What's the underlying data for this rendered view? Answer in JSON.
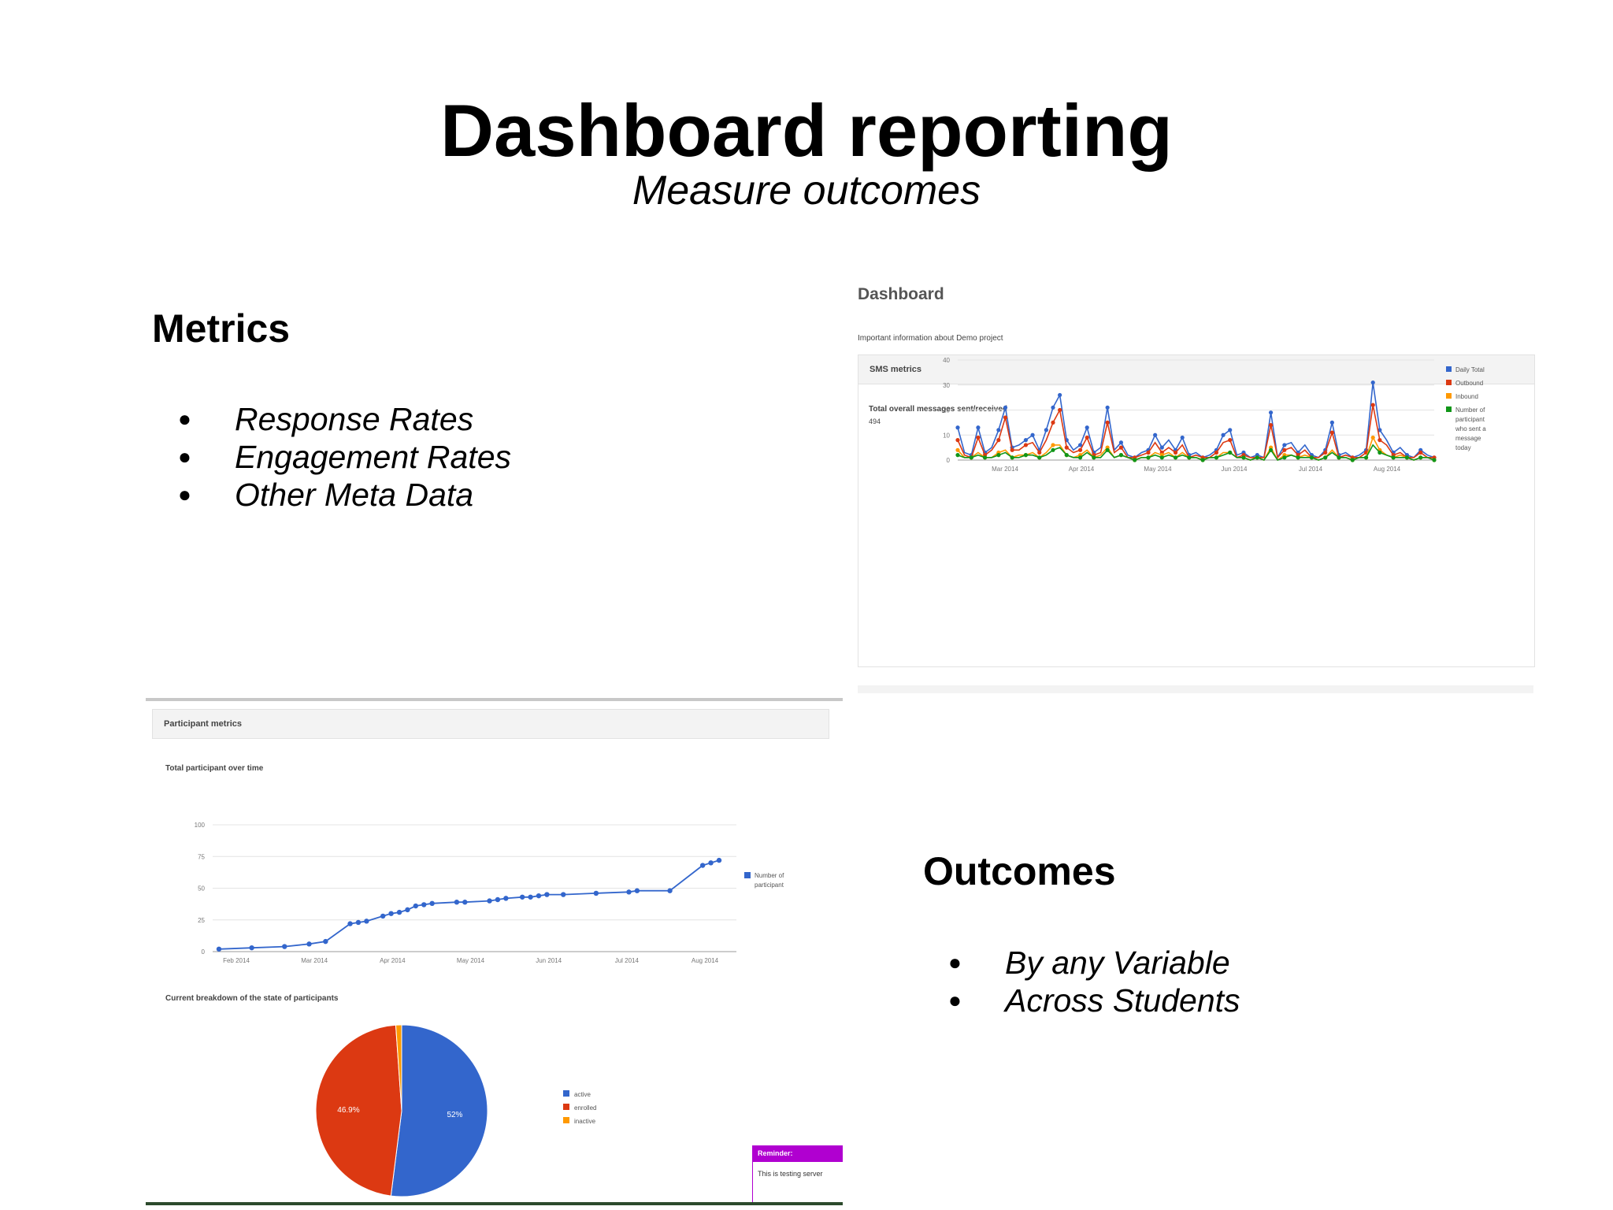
{
  "slide": {
    "title": "Dashboard reporting",
    "subtitle": "Measure outcomes"
  },
  "metrics": {
    "heading": "Metrics",
    "items": [
      "Response Rates",
      "Engagement Rates",
      "Other Meta Data"
    ]
  },
  "outcomes": {
    "heading": "Outcomes",
    "items": [
      "By any Variable",
      "Across Students"
    ]
  },
  "sms_screenshot": {
    "page_title": "Dashboard",
    "intro": "Important information about Demo project",
    "panel_title": "SMS metrics",
    "chart_title": "Total overall messages sent/received",
    "total": "494"
  },
  "participant_screenshot": {
    "panel_title": "Participant metrics",
    "line_chart_title": "Total participant over time",
    "pie_chart_title": "Current breakdown of the state of participants",
    "reminder_title": "Reminder:",
    "reminder_text": "This is testing server"
  },
  "chart_data": [
    {
      "type": "line",
      "title": "",
      "y_ticks": [
        "0",
        "10",
        "20",
        "30",
        "40"
      ],
      "ylim": [
        0,
        40
      ],
      "x_ticks": [
        "Mar 2014",
        "Apr 2014",
        "May 2014",
        "Jun 2014",
        "Jul 2014",
        "Aug 2014"
      ],
      "legend_position": "right",
      "colors": [
        "#3366cc",
        "#dc3912",
        "#ff9900",
        "#109618"
      ],
      "x": [
        0,
        1,
        2,
        3,
        4,
        5,
        6,
        7,
        8,
        9,
        10,
        11,
        12,
        13,
        14,
        15,
        16,
        17,
        18,
        19,
        20,
        21,
        22,
        23,
        24,
        25,
        26,
        27,
        28,
        29,
        30,
        31,
        32,
        33,
        34,
        35,
        36,
        37,
        38,
        39,
        40,
        41,
        42,
        43,
        44,
        45,
        46,
        47,
        48,
        49,
        50,
        51,
        52,
        53,
        54,
        55,
        56,
        57,
        58,
        59,
        60,
        61,
        62,
        63,
        64,
        65,
        66,
        67,
        68,
        69,
        70
      ],
      "series": [
        {
          "name": "Daily Total",
          "values": [
            13,
            3,
            2,
            13,
            3,
            5,
            12,
            21,
            5,
            6,
            8,
            10,
            4,
            12,
            21,
            26,
            8,
            4,
            6,
            13,
            3,
            5,
            21,
            4,
            7,
            2,
            1,
            3,
            4,
            10,
            5,
            8,
            4,
            9,
            2,
            3,
            1,
            2,
            4,
            10,
            12,
            2,
            3,
            1,
            2,
            1,
            19,
            1,
            6,
            7,
            3,
            6,
            2,
            1,
            4,
            15,
            2,
            3,
            1,
            2,
            4,
            31,
            12,
            8,
            3,
            5,
            2,
            1,
            4,
            2,
            1
          ]
        },
        {
          "name": "Outbound",
          "values": [
            8,
            2,
            1,
            9,
            2,
            4,
            8,
            17,
            4,
            4,
            6,
            7,
            3,
            8,
            15,
            20,
            5,
            3,
            4,
            9,
            2,
            3,
            15,
            3,
            5,
            1,
            1,
            2,
            3,
            7,
            3,
            5,
            3,
            6,
            1,
            2,
            1,
            1,
            3,
            7,
            8,
            1,
            2,
            1,
            1,
            1,
            14,
            1,
            4,
            5,
            2,
            4,
            1,
            1,
            3,
            11,
            1,
            2,
            1,
            1,
            3,
            22,
            8,
            6,
            2,
            3,
            1,
            1,
            3,
            1,
            1
          ]
        },
        {
          "name": "Inbound",
          "values": [
            4,
            1,
            1,
            3,
            1,
            1,
            3,
            4,
            1,
            2,
            2,
            3,
            1,
            3,
            6,
            6,
            2,
            1,
            2,
            4,
            1,
            2,
            5,
            1,
            2,
            1,
            0,
            1,
            1,
            3,
            2,
            3,
            1,
            3,
            1,
            1,
            0,
            1,
            1,
            3,
            3,
            1,
            1,
            0,
            1,
            0,
            5,
            0,
            2,
            2,
            1,
            2,
            1,
            0,
            1,
            4,
            1,
            1,
            0,
            1,
            1,
            9,
            4,
            2,
            1,
            2,
            1,
            0,
            1,
            1,
            0
          ]
        },
        {
          "name": "Number of participant who sent a message today",
          "values": [
            2,
            1,
            1,
            2,
            1,
            1,
            2,
            3,
            1,
            1,
            2,
            2,
            1,
            2,
            4,
            5,
            2,
            1,
            1,
            3,
            1,
            1,
            4,
            1,
            2,
            1,
            0,
            1,
            1,
            2,
            1,
            2,
            1,
            2,
            1,
            1,
            0,
            1,
            1,
            2,
            3,
            1,
            1,
            0,
            1,
            0,
            4,
            0,
            1,
            2,
            1,
            1,
            1,
            0,
            1,
            3,
            1,
            1,
            0,
            1,
            1,
            6,
            3,
            2,
            1,
            1,
            1,
            0,
            1,
            1,
            0
          ]
        }
      ]
    },
    {
      "type": "line",
      "title": "",
      "y_ticks": [
        "0",
        "25",
        "50",
        "75",
        "100"
      ],
      "ylim": [
        0,
        100
      ],
      "x_ticks": [
        "Feb 2014",
        "Mar 2014",
        "Apr 2014",
        "May 2014",
        "Jun 2014",
        "Jul 2014",
        "Aug 2014"
      ],
      "legend_position": "right",
      "series": [
        {
          "name": "Number of participant",
          "color": "#3366cc",
          "x": [
            0,
            4,
            8,
            11,
            13,
            16,
            17,
            18,
            20,
            21,
            22,
            23,
            24,
            25,
            26,
            29,
            30,
            33,
            34,
            35,
            37,
            38,
            39,
            40,
            42,
            46,
            50,
            51,
            55,
            59,
            60,
            61
          ],
          "values": [
            2,
            3,
            4,
            6,
            8,
            22,
            23,
            24,
            28,
            30,
            31,
            33,
            36,
            37,
            38,
            39,
            39,
            40,
            41,
            42,
            43,
            43,
            44,
            45,
            45,
            46,
            47,
            48,
            48,
            68,
            70,
            72
          ]
        }
      ]
    },
    {
      "type": "pie",
      "title": "",
      "legend_position": "right",
      "labels": [
        "active",
        "enrolled",
        "inactive"
      ],
      "values": [
        52,
        46.9,
        1.1
      ],
      "slice_labels": [
        "52%",
        "46.9%",
        ""
      ],
      "colors": [
        "#3366cc",
        "#dc3912",
        "#ff9900"
      ]
    }
  ]
}
